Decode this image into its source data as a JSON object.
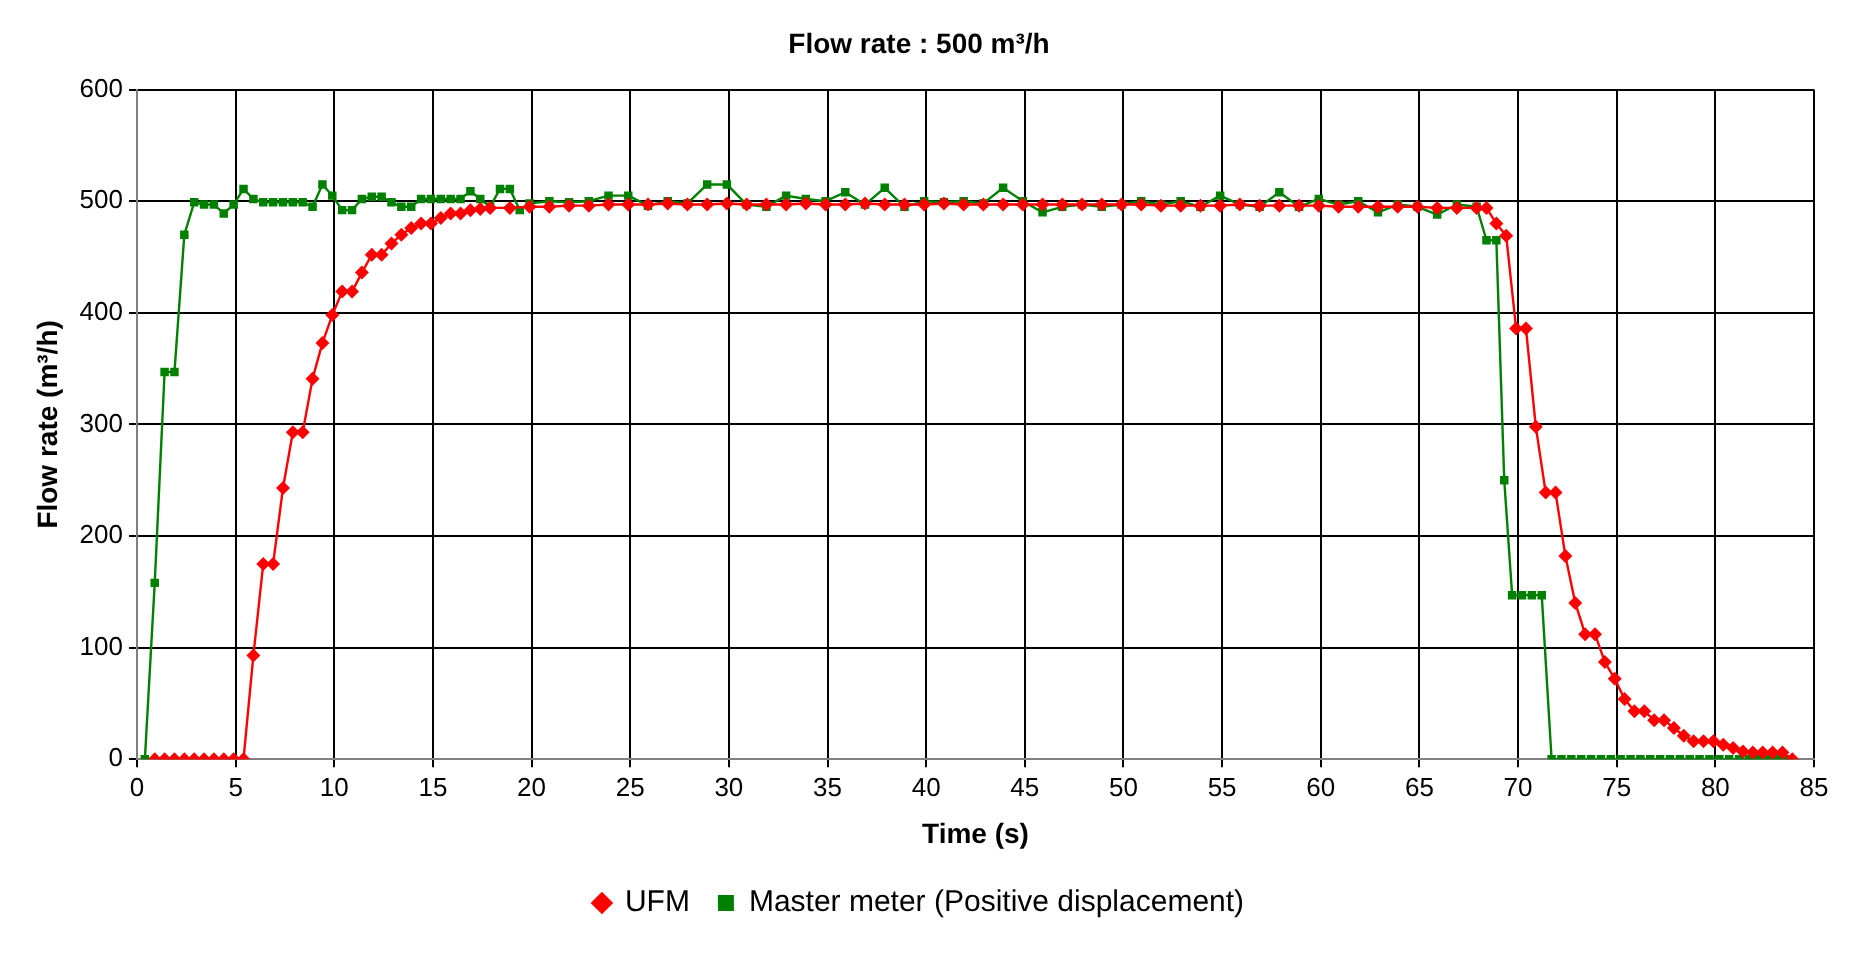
{
  "chart_data": {
    "type": "line",
    "title": "Flow rate : 500 m³/h",
    "xlabel": "Time (s)",
    "ylabel": "Flow rate (m³/h)",
    "xlim": [
      0,
      85
    ],
    "xticks": [
      0,
      5,
      10,
      15,
      20,
      25,
      30,
      35,
      40,
      45,
      50,
      55,
      60,
      65,
      70,
      75,
      80,
      85
    ],
    "ylim": [
      0,
      600
    ],
    "yticks": [
      0,
      100,
      200,
      300,
      400,
      500,
      600
    ],
    "grid": true,
    "legend": "bottom",
    "line_style": "solid",
    "series": [
      {
        "name": "UFM",
        "color": "#ff0000",
        "marker": "diamond",
        "x": [
          0.9,
          1.4,
          1.9,
          2.4,
          2.9,
          3.4,
          3.9,
          4.4,
          4.9,
          5.4,
          5.9,
          6.4,
          6.9,
          7.4,
          7.9,
          8.4,
          8.9,
          9.4,
          9.9,
          10.4,
          10.9,
          11.4,
          11.9,
          12.4,
          12.9,
          13.4,
          13.9,
          14.4,
          14.9,
          15.4,
          15.9,
          16.4,
          16.9,
          17.4,
          17.9,
          18.9,
          19.9,
          20.9,
          21.9,
          22.9,
          23.9,
          24.9,
          25.9,
          26.9,
          27.9,
          28.9,
          29.9,
          30.9,
          31.9,
          32.9,
          33.9,
          34.9,
          35.9,
          36.9,
          37.9,
          38.9,
          39.9,
          40.9,
          41.9,
          42.9,
          43.9,
          44.9,
          45.9,
          46.9,
          47.9,
          48.9,
          49.9,
          50.9,
          51.9,
          52.9,
          53.9,
          54.9,
          55.9,
          56.9,
          57.9,
          58.9,
          59.9,
          60.9,
          61.9,
          62.9,
          63.9,
          64.9,
          65.9,
          66.9,
          67.9,
          68.4,
          68.9,
          69.4,
          69.9,
          70.4,
          70.9,
          71.4,
          71.9,
          72.4,
          72.9,
          73.4,
          73.9,
          74.4,
          74.9,
          75.4,
          75.9,
          76.4,
          76.9,
          77.4,
          77.9,
          78.4,
          78.9,
          79.4,
          79.9,
          80.4,
          80.9,
          81.4,
          81.9,
          82.4,
          82.9,
          83.4,
          83.9
        ],
        "values": [
          0,
          0,
          0,
          0,
          0,
          0,
          0,
          0,
          0,
          0,
          93,
          175,
          175,
          243,
          293,
          293,
          341,
          373,
          398,
          419,
          419,
          436,
          452,
          452,
          462,
          470,
          476,
          480,
          480,
          485,
          489,
          489,
          492,
          493,
          494,
          494,
          495,
          495,
          496,
          496,
          497,
          497,
          497,
          498,
          497,
          497,
          498,
          497,
          497,
          497,
          498,
          497,
          497,
          498,
          497,
          497,
          497,
          498,
          497,
          497,
          497,
          497,
          497,
          497,
          497,
          497,
          497,
          497,
          496,
          496,
          496,
          496,
          497,
          496,
          496,
          496,
          496,
          495,
          495,
          495,
          495,
          495,
          494,
          494,
          494,
          494,
          480,
          469,
          386,
          386,
          298,
          239,
          239,
          182,
          140,
          112,
          112,
          87,
          72,
          54,
          43,
          43,
          35,
          35,
          28,
          21,
          16,
          16,
          16,
          13,
          10,
          7,
          6,
          6,
          6,
          6,
          0
        ]
      },
      {
        "name": "Master meter (Positive displacement)",
        "color": "#008000",
        "marker": "square",
        "x": [
          0.4,
          0.9,
          1.4,
          1.9,
          2.4,
          2.9,
          3.4,
          3.9,
          4.4,
          4.9,
          5.4,
          5.9,
          6.4,
          6.9,
          7.4,
          7.9,
          8.4,
          8.9,
          9.4,
          9.9,
          10.4,
          10.9,
          11.4,
          11.9,
          12.4,
          12.9,
          13.4,
          13.9,
          14.4,
          14.9,
          15.4,
          15.9,
          16.4,
          16.9,
          17.4,
          17.9,
          18.4,
          18.9,
          19.4,
          19.9,
          20.9,
          21.9,
          22.9,
          23.9,
          24.9,
          25.9,
          26.9,
          27.9,
          28.9,
          29.9,
          30.9,
          31.9,
          32.9,
          33.9,
          34.9,
          35.9,
          36.9,
          37.9,
          38.9,
          39.9,
          40.9,
          41.9,
          42.9,
          43.9,
          44.9,
          45.9,
          46.9,
          47.9,
          48.9,
          49.9,
          50.9,
          51.9,
          52.9,
          53.9,
          54.9,
          55.9,
          56.9,
          57.9,
          58.9,
          59.9,
          60.9,
          61.9,
          62.9,
          63.9,
          64.9,
          65.9,
          66.9,
          67.9,
          68.4,
          68.9,
          69.3,
          69.7,
          70.2,
          70.7,
          71.2,
          71.7,
          72.2,
          72.7,
          73.2,
          73.7,
          74.2,
          74.7,
          75.2,
          75.7,
          76.2,
          76.7,
          77.2,
          77.7,
          78.2,
          78.7,
          79.2,
          79.7,
          80.2,
          80.7,
          81.2,
          81.7,
          82.2,
          82.7,
          83.2,
          83.7
        ],
        "values": [
          0,
          158,
          347,
          347,
          470,
          499,
          497,
          497,
          489,
          497,
          511,
          502,
          499,
          499,
          499,
          499,
          499,
          495,
          515,
          505,
          492,
          492,
          502,
          504,
          504,
          499,
          495,
          495,
          502,
          502,
          502,
          502,
          502,
          509,
          502,
          495,
          511,
          511,
          492,
          498,
          500,
          499,
          500,
          505,
          505,
          496,
          500,
          498,
          515,
          515,
          497,
          495,
          505,
          502,
          500,
          508,
          497,
          512,
          495,
          500,
          499,
          500,
          498,
          512,
          500,
          490,
          495,
          497,
          495,
          497,
          500,
          497,
          500,
          495,
          505,
          497,
          495,
          508,
          495,
          502,
          497,
          500,
          490,
          497,
          495,
          488,
          497,
          495,
          465,
          465,
          250,
          147,
          147,
          147,
          147,
          0,
          0,
          0,
          0,
          0,
          0,
          0,
          0,
          0,
          0,
          0,
          0,
          0,
          0,
          0,
          0,
          0,
          0,
          0,
          0,
          0,
          0,
          0,
          0,
          0
        ]
      }
    ]
  }
}
